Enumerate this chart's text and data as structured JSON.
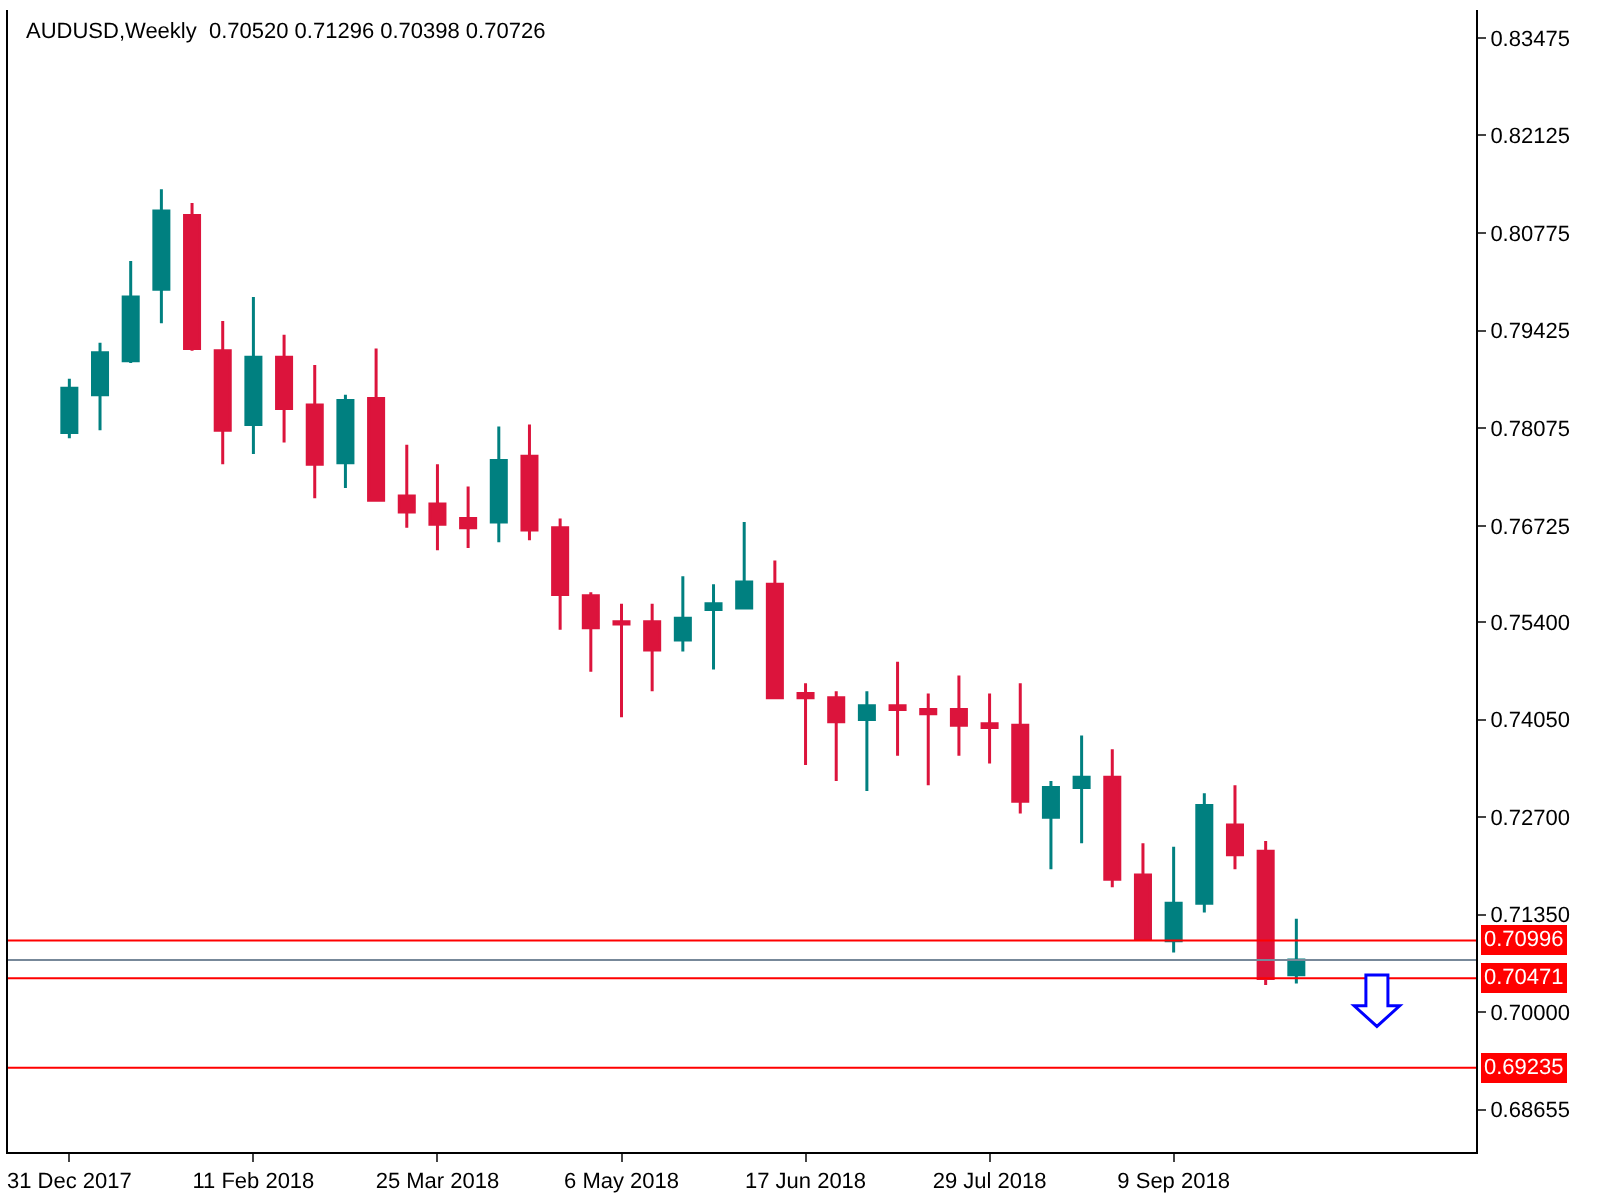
{
  "chart_data": {
    "type": "candlestick",
    "title": "AUDUSD,Weekly  0.70520 0.71296 0.70398 0.70726",
    "x": [
      "2017-12-31",
      "2018-01-07",
      "2018-01-14",
      "2018-01-21",
      "2018-01-28",
      "2018-02-04",
      "2018-02-11",
      "2018-02-18",
      "2018-02-25",
      "2018-03-04",
      "2018-03-11",
      "2018-03-18",
      "2018-03-25",
      "2018-04-01",
      "2018-04-08",
      "2018-04-15",
      "2018-04-22",
      "2018-04-29",
      "2018-05-06",
      "2018-05-13",
      "2018-05-20",
      "2018-05-27",
      "2018-06-03",
      "2018-06-10",
      "2018-06-17",
      "2018-06-24",
      "2018-07-01",
      "2018-07-08",
      "2018-07-15",
      "2018-07-22",
      "2018-07-29",
      "2018-08-05",
      "2018-08-12",
      "2018-08-19",
      "2018-08-26",
      "2018-09-02",
      "2018-09-09",
      "2018-09-16",
      "2018-09-23",
      "2018-09-30",
      "2018-10-07"
    ],
    "ohlc": [
      [
        0.7802,
        0.7876,
        0.7794,
        0.7863
      ],
      [
        0.7854,
        0.7926,
        0.7805,
        0.7912
      ],
      [
        0.7901,
        0.8039,
        0.7898,
        0.7989
      ],
      [
        0.8,
        0.8138,
        0.7953,
        0.8108
      ],
      [
        0.8102,
        0.8119,
        0.7915,
        0.7918
      ],
      [
        0.7915,
        0.7956,
        0.7758,
        0.7805
      ],
      [
        0.7813,
        0.7989,
        0.7772,
        0.7906
      ],
      [
        0.7906,
        0.7937,
        0.7788,
        0.7835
      ],
      [
        0.784,
        0.7895,
        0.7711,
        0.7758
      ],
      [
        0.776,
        0.7854,
        0.7725,
        0.7846
      ],
      [
        0.7849,
        0.7918,
        0.7708,
        0.7708
      ],
      [
        0.7714,
        0.7785,
        0.767,
        0.7692
      ],
      [
        0.7703,
        0.7758,
        0.7639,
        0.7675
      ],
      [
        0.7683,
        0.7727,
        0.7642,
        0.767
      ],
      [
        0.7678,
        0.781,
        0.765,
        0.7763
      ],
      [
        0.7769,
        0.7813,
        0.7653,
        0.7667
      ],
      [
        0.767,
        0.7683,
        0.7529,
        0.7578
      ],
      [
        0.7576,
        0.7581,
        0.7471,
        0.7532
      ],
      [
        0.754,
        0.7565,
        0.7408,
        0.7537
      ],
      [
        0.754,
        0.7565,
        0.7444,
        0.7501
      ],
      [
        0.7515,
        0.7603,
        0.7499,
        0.7545
      ],
      [
        0.7557,
        0.7592,
        0.7474,
        0.7565
      ],
      [
        0.7559,
        0.7678,
        0.7557,
        0.7595
      ],
      [
        0.7592,
        0.7625,
        0.7435,
        0.7435
      ],
      [
        0.7441,
        0.7455,
        0.7342,
        0.7435
      ],
      [
        0.7435,
        0.7444,
        0.732,
        0.7402
      ],
      [
        0.7405,
        0.7444,
        0.7306,
        0.7424
      ],
      [
        0.7424,
        0.7485,
        0.7355,
        0.7419
      ],
      [
        0.7419,
        0.7441,
        0.7314,
        0.7413
      ],
      [
        0.7419,
        0.7466,
        0.7355,
        0.7397
      ],
      [
        0.7399,
        0.7441,
        0.7344,
        0.7394
      ],
      [
        0.7397,
        0.7455,
        0.7275,
        0.7292
      ],
      [
        0.727,
        0.732,
        0.7198,
        0.7311
      ],
      [
        0.7311,
        0.7383,
        0.7234,
        0.7325
      ],
      [
        0.7325,
        0.7364,
        0.7173,
        0.7184
      ],
      [
        0.719,
        0.7234,
        0.7099,
        0.7102
      ],
      [
        0.7099,
        0.7229,
        0.7083,
        0.7151
      ],
      [
        0.7151,
        0.7303,
        0.7138,
        0.7286
      ],
      [
        0.7259,
        0.7314,
        0.7198,
        0.7218
      ],
      [
        0.7223,
        0.7237,
        0.7038,
        0.7047
      ],
      [
        0.7052,
        0.71296,
        0.70398,
        0.70726
      ]
    ],
    "colors": [
      "#008080",
      "#008080",
      "#008080",
      "#008080",
      "#dc143c",
      "#dc143c",
      "#008080",
      "#dc143c",
      "#dc143c",
      "#008080",
      "#dc143c",
      "#dc143c",
      "#dc143c",
      "#dc143c",
      "#008080",
      "#dc143c",
      "#dc143c",
      "#dc143c",
      "#dc143c",
      "#dc143c",
      "#008080",
      "#008080",
      "#008080",
      "#dc143c",
      "#dc143c",
      "#dc143c",
      "#008080",
      "#dc143c",
      "#dc143c",
      "#dc143c",
      "#dc143c",
      "#dc143c",
      "#008080",
      "#008080",
      "#dc143c",
      "#dc143c",
      "#008080",
      "#008080",
      "#dc143c",
      "#dc143c",
      "#008080"
    ],
    "xlim": [
      "2017-12-17",
      "2018-11-17"
    ],
    "xticks": [
      {
        "value": "2017-12-31",
        "label": "31 Dec 2017"
      },
      {
        "value": "2018-02-11",
        "label": "11 Feb 2018"
      },
      {
        "value": "2018-03-25",
        "label": "25 Mar 2018"
      },
      {
        "value": "2018-05-06",
        "label": "6 May 2018"
      },
      {
        "value": "2018-06-17",
        "label": "17 Jun 2018"
      },
      {
        "value": "2018-07-29",
        "label": "29 Jul 2018"
      },
      {
        "value": "2018-09-09",
        "label": "9 Sep 2018"
      }
    ],
    "ylim": [
      0.6807,
      0.8386
    ],
    "yticks": [
      {
        "value": 0.83475,
        "label": "0.83475"
      },
      {
        "value": 0.82125,
        "label": "0.82125"
      },
      {
        "value": 0.80775,
        "label": "0.80775"
      },
      {
        "value": 0.79425,
        "label": "0.79425"
      },
      {
        "value": 0.78075,
        "label": "0.78075"
      },
      {
        "value": 0.76725,
        "label": "0.76725"
      },
      {
        "value": 0.754,
        "label": "0.75400"
      },
      {
        "value": 0.7405,
        "label": "0.74050"
      },
      {
        "value": 0.727,
        "label": "0.72700"
      },
      {
        "value": 0.7135,
        "label": "0.71350"
      },
      {
        "value": 0.7,
        "label": "0.70000"
      },
      {
        "value": 0.68655,
        "label": "0.68655"
      }
    ],
    "ref_lines": [
      {
        "axis": "y",
        "value": 0.70996,
        "label": "0.70996",
        "color": "#ff0000"
      },
      {
        "axis": "y",
        "value": 0.70471,
        "label": "0.70471",
        "color": "#ff0000"
      },
      {
        "axis": "y",
        "value": 0.69235,
        "label": "0.69235",
        "color": "#ff0000"
      },
      {
        "axis": "y",
        "value": 0.70726,
        "label": null,
        "color": "#778899"
      }
    ]
  }
}
